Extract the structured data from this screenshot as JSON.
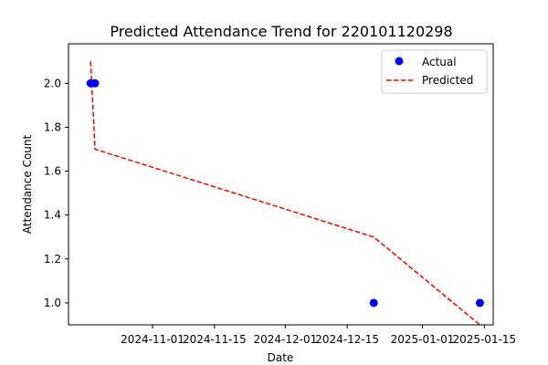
{
  "chart_data": {
    "type": "scatter",
    "title": "Predicted Attendance Trend for 220101120298",
    "xlabel": "Date",
    "ylabel": "Attendance Count",
    "xlim": [
      "2024-10-13",
      "2025-01-17"
    ],
    "ylim": [
      0.9,
      2.18
    ],
    "x_ticks": [
      "2024-11-01",
      "2024-11-15",
      "2024-12-01",
      "2024-12-15",
      "2025-01-01",
      "2025-01-15"
    ],
    "y_ticks": [
      "1.0",
      "1.2",
      "1.4",
      "1.6",
      "1.8",
      "2.0"
    ],
    "grid": false,
    "legend_position": "top-right",
    "series": [
      {
        "name": "Actual",
        "type": "scatter",
        "color": "#0000ff",
        "points": [
          {
            "x": "2024-10-18",
            "y": 2.0
          },
          {
            "x": "2024-10-19",
            "y": 2.0
          },
          {
            "x": "2024-12-21",
            "y": 1.0
          },
          {
            "x": "2025-01-14",
            "y": 1.0
          }
        ]
      },
      {
        "name": "Predicted",
        "type": "line",
        "style": "dashed",
        "color": "#ff0000",
        "points": [
          {
            "x": "2024-10-18",
            "y": 2.1
          },
          {
            "x": "2024-10-19",
            "y": 1.7
          },
          {
            "x": "2024-12-21",
            "y": 1.3
          },
          {
            "x": "2025-01-14",
            "y": 0.9
          }
        ]
      }
    ]
  }
}
